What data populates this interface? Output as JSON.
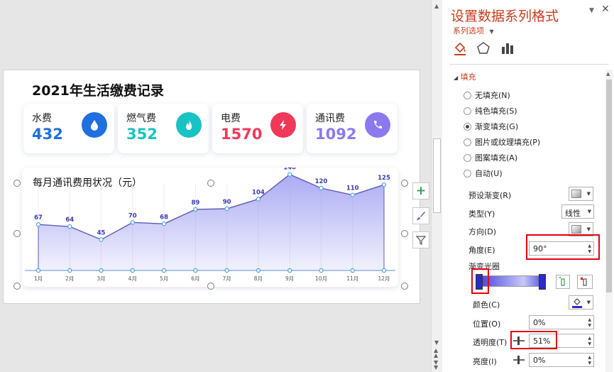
{
  "slide": {
    "title": "2021年生活缴费记录",
    "cards": [
      {
        "label": "水费",
        "value": "432",
        "color": "#1f6fe0",
        "icon": "water-drop-icon"
      },
      {
        "label": "燃气费",
        "value": "352",
        "color": "#19c3c3",
        "icon": "flame-icon"
      },
      {
        "label": "电费",
        "value": "1570",
        "color": "#f0385b",
        "icon": "lightning-icon"
      },
      {
        "label": "通讯费",
        "value": "1092",
        "color": "#8c79f0",
        "icon": "phone-icon"
      }
    ],
    "chart_title": "每月通讯费用状况（元）"
  },
  "chart_data": {
    "type": "area",
    "categories": [
      "1月",
      "2月",
      "3月",
      "4月",
      "5月",
      "6月",
      "7月",
      "8月",
      "9月",
      "10月",
      "11月",
      "12月"
    ],
    "values": [
      67,
      64,
      45,
      70,
      68,
      89,
      90,
      104,
      140,
      120,
      110,
      125
    ],
    "title": "每月通讯费用状况（元）",
    "xlabel": "",
    "ylabel": "",
    "ylim": [
      0,
      150
    ],
    "line_color": "#5b5bb8",
    "fill_color": "#8f8ff0",
    "grid": false
  },
  "pane": {
    "title": "设置数据系列格式",
    "subtitle": "系列选项",
    "section": "填充",
    "fill_options": [
      {
        "label": "无填充(N)",
        "selected": false
      },
      {
        "label": "纯色填充(S)",
        "selected": false
      },
      {
        "label": "渐变填充(G)",
        "selected": true
      },
      {
        "label": "图片或纹理填充(P)",
        "selected": false
      },
      {
        "label": "图案填充(A)",
        "selected": false
      },
      {
        "label": "自动(U)",
        "selected": false
      }
    ],
    "preset_label": "预设渐变(R)",
    "type_label": "类型(Y)",
    "type_value": "线性",
    "direction_label": "方向(D)",
    "angle_label": "角度(E)",
    "angle_value": "90°",
    "stops_label": "渐变光圈",
    "color_label": "颜色(C)",
    "position_label": "位置(O)",
    "position_value": "0%",
    "transparency_label": "透明度(T)",
    "transparency_value": "51%",
    "brightness_label": "亮度(I)",
    "brightness_value": "0%"
  }
}
